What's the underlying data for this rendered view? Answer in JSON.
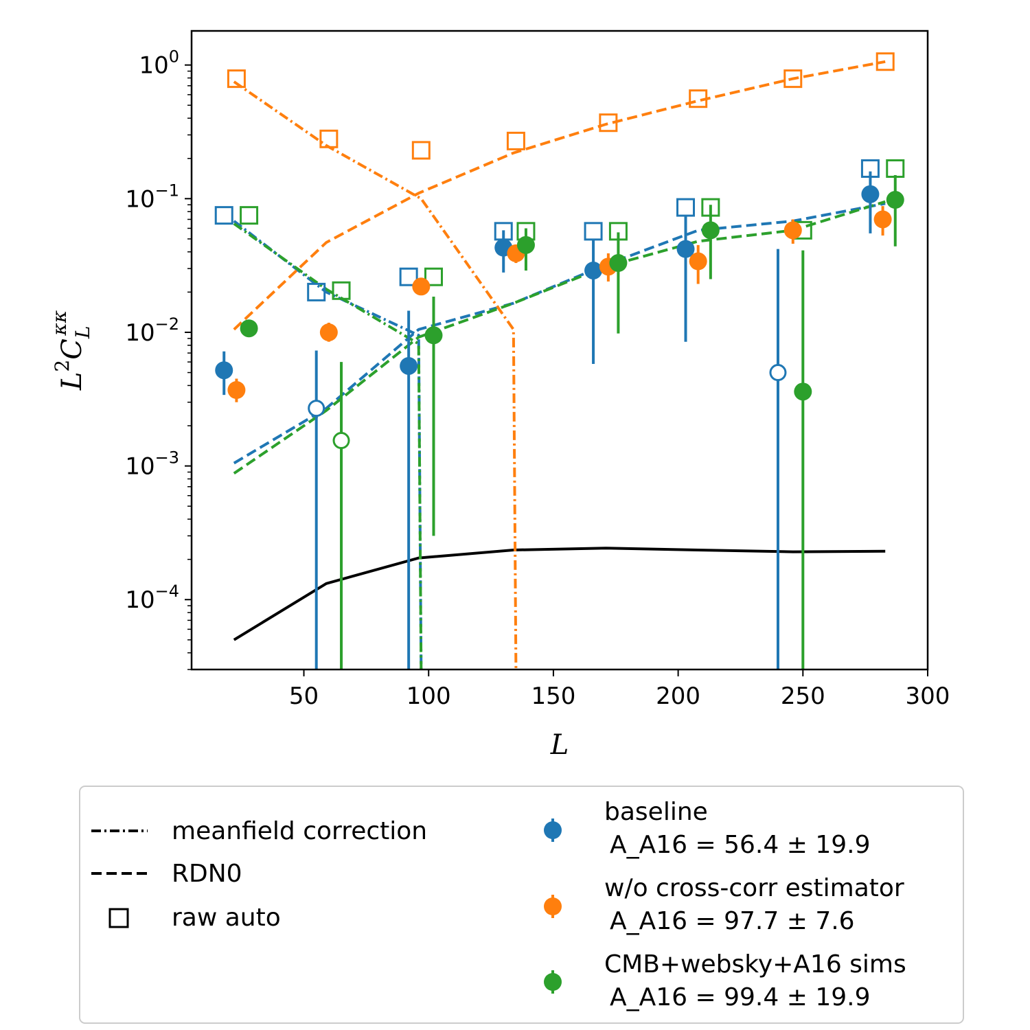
{
  "chart_data": {
    "type": "scatter",
    "xlabel": "L",
    "ylabel": "L^2 C_L^κκ",
    "xlim": [
      5,
      300
    ],
    "ylim": [
      3e-05,
      1.8
    ],
    "yscale": "log",
    "xticks": [
      50,
      100,
      150,
      200,
      250,
      300
    ],
    "yticks": [
      0.0001,
      0.001,
      0.01,
      0.1,
      1
    ],
    "colors": {
      "blue": "#1f77b4",
      "orange": "#ff7f0e",
      "green": "#2ca02c",
      "black": "#000000"
    },
    "legend_lines": [
      {
        "label": "meanfield correction",
        "style": "dashdot"
      },
      {
        "label": "RDN0",
        "style": "dashed"
      },
      {
        "label": "raw auto",
        "style": "square"
      }
    ],
    "series": [
      {
        "name": "baseline",
        "amplitude": "A_A16 = 56.4 ± 19.9",
        "color": "#1f77b4",
        "points": [
          {
            "x": 18,
            "y": 0.0052,
            "lo": 0.0034,
            "hi": 0.0072
          },
          {
            "x": 55,
            "y": 0.0027,
            "lo": 3e-05,
            "hi": 0.0073,
            "negative": true
          },
          {
            "x": 92,
            "y": 0.0056,
            "lo": 3e-05,
            "hi": 0.0145
          },
          {
            "x": 130,
            "y": 0.043,
            "lo": 0.028,
            "hi": 0.058
          },
          {
            "x": 166,
            "y": 0.029,
            "lo": 0.0058,
            "hi": 0.05
          },
          {
            "x": 203,
            "y": 0.042,
            "lo": 0.0085,
            "hi": 0.075
          },
          {
            "x": 240,
            "y": 0.005,
            "lo": 3e-05,
            "hi": 0.042,
            "negative": true
          },
          {
            "x": 277,
            "y": 0.108,
            "lo": 0.055,
            "hi": 0.16
          }
        ],
        "raw_auto": [
          {
            "x": 18,
            "y": 0.075
          },
          {
            "x": 55,
            "y": 0.02
          },
          {
            "x": 92,
            "y": 0.026
          },
          {
            "x": 130,
            "y": 0.057
          },
          {
            "x": 166,
            "y": 0.057
          },
          {
            "x": 203,
            "y": 0.086
          },
          {
            "x": 277,
            "y": 0.168
          }
        ],
        "meanfield": [
          {
            "x": 22,
            "y": 0.068
          },
          {
            "x": 59,
            "y": 0.02
          },
          {
            "x": 96,
            "y": 0.0095
          },
          {
            "x": 97,
            "y": 3e-05
          }
        ],
        "rdn0": [
          {
            "x": 22,
            "y": 0.00105
          },
          {
            "x": 59,
            "y": 0.0027
          },
          {
            "x": 96,
            "y": 0.0105
          },
          {
            "x": 134,
            "y": 0.0165
          },
          {
            "x": 171,
            "y": 0.032
          },
          {
            "x": 208,
            "y": 0.058
          },
          {
            "x": 246,
            "y": 0.068
          },
          {
            "x": 283,
            "y": 0.092
          }
        ]
      },
      {
        "name": "w/o cross-corr estimator",
        "amplitude": "A_A16 = 97.7 ± 7.6",
        "color": "#ff7f0e",
        "points": [
          {
            "x": 23,
            "y": 0.0037,
            "lo": 0.003,
            "hi": 0.0045
          },
          {
            "x": 60,
            "y": 0.01,
            "lo": 0.0085,
            "hi": 0.0118
          },
          {
            "x": 97,
            "y": 0.022,
            "lo": 0.019,
            "hi": 0.025
          },
          {
            "x": 135,
            "y": 0.039,
            "lo": 0.033,
            "hi": 0.045
          },
          {
            "x": 172,
            "y": 0.031,
            "lo": 0.024,
            "hi": 0.039
          },
          {
            "x": 208,
            "y": 0.034,
            "lo": 0.023,
            "hi": 0.045
          },
          {
            "x": 246,
            "y": 0.058,
            "lo": 0.046,
            "hi": 0.07
          },
          {
            "x": 282,
            "y": 0.07,
            "lo": 0.053,
            "hi": 0.088
          }
        ],
        "raw_auto": [
          {
            "x": 23,
            "y": 0.79
          },
          {
            "x": 60,
            "y": 0.28
          },
          {
            "x": 97,
            "y": 0.23
          },
          {
            "x": 135,
            "y": 0.27
          },
          {
            "x": 172,
            "y": 0.37
          },
          {
            "x": 208,
            "y": 0.56
          },
          {
            "x": 246,
            "y": 0.79
          },
          {
            "x": 283,
            "y": 1.06
          }
        ],
        "meanfield": [
          {
            "x": 22,
            "y": 0.75
          },
          {
            "x": 59,
            "y": 0.25
          },
          {
            "x": 97,
            "y": 0.1
          },
          {
            "x": 134,
            "y": 0.0105
          },
          {
            "x": 135,
            "y": 3e-05
          }
        ],
        "rdn0": [
          {
            "x": 22,
            "y": 0.0105
          },
          {
            "x": 59,
            "y": 0.047
          },
          {
            "x": 96,
            "y": 0.11
          },
          {
            "x": 134,
            "y": 0.22
          },
          {
            "x": 171,
            "y": 0.36
          },
          {
            "x": 208,
            "y": 0.54
          },
          {
            "x": 246,
            "y": 0.79
          },
          {
            "x": 283,
            "y": 1.06
          }
        ]
      },
      {
        "name": "CMB+websky+A16 sims",
        "amplitude": "A_A16 = 99.4 ± 19.9",
        "color": "#2ca02c",
        "points": [
          {
            "x": 28,
            "y": 0.0107,
            "lo": 0.0098,
            "hi": 0.0118
          },
          {
            "x": 65,
            "y": 0.00155,
            "lo": 3e-05,
            "hi": 0.006,
            "negative": true
          },
          {
            "x": 102,
            "y": 0.0095,
            "lo": 0.0003,
            "hi": 0.0185
          },
          {
            "x": 139,
            "y": 0.045,
            "lo": 0.029,
            "hi": 0.06
          },
          {
            "x": 176,
            "y": 0.033,
            "lo": 0.0098,
            "hi": 0.056
          },
          {
            "x": 213,
            "y": 0.058,
            "lo": 0.025,
            "hi": 0.09
          },
          {
            "x": 250,
            "y": 0.0036,
            "lo": 3e-05,
            "hi": 0.041
          },
          {
            "x": 287,
            "y": 0.098,
            "lo": 0.044,
            "hi": 0.15
          }
        ],
        "raw_auto": [
          {
            "x": 28,
            "y": 0.075
          },
          {
            "x": 65,
            "y": 0.0205
          },
          {
            "x": 102,
            "y": 0.026
          },
          {
            "x": 139,
            "y": 0.057
          },
          {
            "x": 176,
            "y": 0.057
          },
          {
            "x": 213,
            "y": 0.086
          },
          {
            "x": 250,
            "y": 0.058
          },
          {
            "x": 287,
            "y": 0.168
          }
        ],
        "meanfield": [
          {
            "x": 22,
            "y": 0.065
          },
          {
            "x": 59,
            "y": 0.021
          },
          {
            "x": 96,
            "y": 0.0082
          },
          {
            "x": 97,
            "y": 3e-05
          }
        ],
        "rdn0": [
          {
            "x": 22,
            "y": 0.00088
          },
          {
            "x": 59,
            "y": 0.0026
          },
          {
            "x": 96,
            "y": 0.0092
          },
          {
            "x": 134,
            "y": 0.0165
          },
          {
            "x": 171,
            "y": 0.031
          },
          {
            "x": 208,
            "y": 0.048
          },
          {
            "x": 246,
            "y": 0.058
          },
          {
            "x": 283,
            "y": 0.095
          }
        ]
      }
    ],
    "theory": {
      "color": "#000000",
      "points": [
        {
          "x": 22,
          "y": 5e-05
        },
        {
          "x": 59,
          "y": 0.000132
        },
        {
          "x": 96,
          "y": 0.000205
        },
        {
          "x": 134,
          "y": 0.000235
        },
        {
          "x": 171,
          "y": 0.000243
        },
        {
          "x": 208,
          "y": 0.000235
        },
        {
          "x": 246,
          "y": 0.000228
        },
        {
          "x": 283,
          "y": 0.00023
        }
      ]
    }
  }
}
